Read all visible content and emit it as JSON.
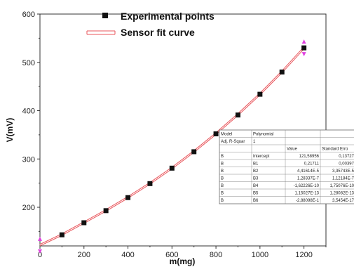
{
  "chart_data": {
    "type": "scatter",
    "xlabel": "m(mg)",
    "ylabel": "V(mV)",
    "xlim": [
      0,
      1300
    ],
    "ylim": [
      120,
      600
    ],
    "xticks": [
      "0",
      "200",
      "400",
      "600",
      "800",
      "1000",
      "1200"
    ],
    "yticks": [
      "200",
      "300",
      "400",
      "500",
      "600"
    ],
    "legend_position": "top-left",
    "series": [
      {
        "name": "Experimental points",
        "marker": "square",
        "color": "#111111",
        "x": [
          100,
          200,
          300,
          400,
          500,
          600,
          700,
          800,
          900,
          1000,
          1100,
          1200
        ],
        "y": [
          143,
          168,
          193,
          220,
          249,
          281,
          315,
          352,
          391,
          434,
          480,
          530
        ]
      },
      {
        "name": "Sensor fit curve",
        "style": "line",
        "color": "#e8555b",
        "x": [
          0,
          100,
          200,
          300,
          400,
          500,
          600,
          700,
          800,
          900,
          1000,
          1100,
          1200
        ],
        "y": [
          121.6,
          143.5,
          168.2,
          193.6,
          220.6,
          249.6,
          281.2,
          315.5,
          352.5,
          392.2,
          434.5,
          480.4,
          530.0
        ]
      }
    ],
    "endpoint_markers": {
      "color": "#e040e0",
      "x": [
        0,
        1200
      ],
      "y": [
        121.6,
        530
      ]
    },
    "fit_table": {
      "header_rows": [
        [
          "Model",
          "Polynomial",
          "",
          ""
        ],
        [
          "Adj. R-Squar",
          "1",
          "",
          ""
        ],
        [
          "",
          "",
          "Value",
          "Standard Erro"
        ]
      ],
      "rows": [
        [
          "B",
          "Intercept",
          "121,58956",
          "0,13727"
        ],
        [
          "B",
          "B1",
          "0,21711",
          "0,00397"
        ],
        [
          "B",
          "B2",
          "4,41614E-5",
          "3,35743E-5"
        ],
        [
          "B",
          "B3",
          "1,28337E-7",
          "1,12184E-7"
        ],
        [
          "B",
          "B4",
          "-1,62226E-10",
          "1,75076E-10"
        ],
        [
          "B",
          "B5",
          "1,15027E-13",
          "1,28082E-13"
        ],
        [
          "B",
          "B6",
          "-2,88098E-1",
          "3,5454E-17"
        ]
      ]
    }
  }
}
